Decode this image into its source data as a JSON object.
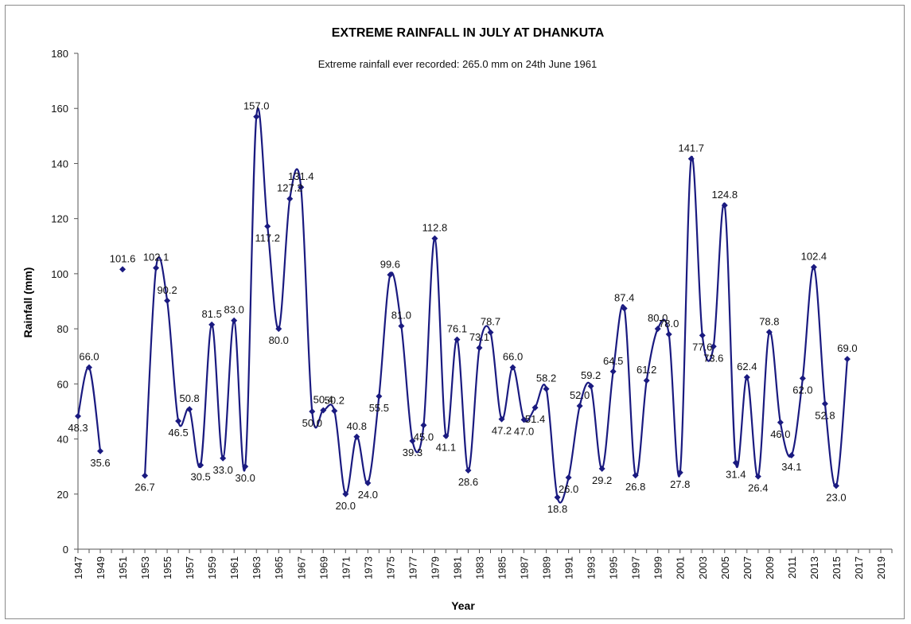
{
  "chart_data": {
    "type": "line",
    "title": "EXTREME RAINFALL IN JULY AT DHANKUTA",
    "annotation": "Extreme rainfall ever recorded: 265.0 mm on 24th June 1961",
    "xlabel": "Year",
    "ylabel": "Rainfall  (mm)",
    "ylim": [
      0,
      180
    ],
    "yticks": [
      0,
      20,
      40,
      60,
      80,
      100,
      120,
      140,
      160,
      180
    ],
    "xlim": [
      1947,
      2020
    ],
    "xticks": [
      1947,
      1949,
      1951,
      1953,
      1955,
      1957,
      1959,
      1961,
      1963,
      1965,
      1967,
      1969,
      1971,
      1973,
      1975,
      1977,
      1979,
      1981,
      1983,
      1985,
      1987,
      1989,
      1991,
      1993,
      1995,
      1997,
      1999,
      2001,
      2003,
      2005,
      2007,
      2009,
      2011,
      2013,
      2015,
      2017,
      2019
    ],
    "grid": false,
    "line_color": "#1a1a80",
    "marker": "diamond",
    "smooth": true,
    "segments": [
      {
        "x": [
          1947,
          1948,
          1949
        ],
        "y": [
          48.3,
          66.0,
          35.6
        ]
      },
      {
        "x": [
          1951
        ],
        "y": [
          101.6
        ]
      },
      {
        "x": [
          1953,
          1954,
          1955,
          1956,
          1957,
          1958,
          1959,
          1960,
          1961,
          1962,
          1963,
          1964,
          1965,
          1966,
          1967,
          1968,
          1969,
          1970,
          1971,
          1972,
          1973,
          1974,
          1975,
          1976,
          1977,
          1978,
          1979,
          1980,
          1981,
          1982,
          1983,
          1984,
          1985,
          1986,
          1987,
          1988,
          1989,
          1990,
          1991,
          1992,
          1993,
          1994,
          1995,
          1996,
          1997,
          1998,
          1999,
          2000,
          2001,
          2002,
          2003,
          2004,
          2005,
          2006,
          2007,
          2008,
          2009,
          2010,
          2011,
          2012,
          2013,
          2014,
          2015,
          2016
        ],
        "y": [
          26.7,
          102.1,
          90.2,
          46.5,
          50.8,
          30.5,
          81.5,
          33.0,
          83.0,
          30.0,
          157.0,
          117.2,
          80.0,
          127.2,
          131.4,
          50.0,
          50.4,
          50.2,
          20.0,
          40.8,
          24.0,
          55.5,
          99.6,
          81.0,
          39.3,
          45.0,
          112.8,
          41.1,
          76.1,
          28.6,
          73.1,
          78.7,
          47.2,
          66.0,
          47.0,
          51.4,
          58.2,
          18.8,
          26.0,
          52.0,
          59.2,
          29.2,
          64.5,
          87.4,
          26.8,
          61.2,
          80.0,
          78.0,
          27.8,
          141.7,
          77.6,
          73.6,
          124.8,
          31.4,
          62.4,
          26.4,
          78.8,
          46.0,
          34.1,
          62.0,
          102.4,
          52.8,
          23.0,
          69.0
        ]
      }
    ],
    "labels": [
      {
        "x": 1947,
        "y": 48.3,
        "text": "48.3"
      },
      {
        "x": 1948,
        "y": 66.0,
        "text": "66.0"
      },
      {
        "x": 1949,
        "y": 35.6,
        "text": "35.6"
      },
      {
        "x": 1951,
        "y": 101.6,
        "text": "101.6"
      },
      {
        "x": 1953,
        "y": 26.7,
        "text": "26.7"
      },
      {
        "x": 1954,
        "y": 102.1,
        "text": "102.1"
      },
      {
        "x": 1955,
        "y": 90.2,
        "text": "90.2"
      },
      {
        "x": 1956,
        "y": 46.5,
        "text": "46.5"
      },
      {
        "x": 1957,
        "y": 50.8,
        "text": "50.8"
      },
      {
        "x": 1958,
        "y": 30.5,
        "text": "30.5"
      },
      {
        "x": 1959,
        "y": 81.5,
        "text": "81.5"
      },
      {
        "x": 1960,
        "y": 33.0,
        "text": "33.0"
      },
      {
        "x": 1961,
        "y": 83.0,
        "text": "83.0"
      },
      {
        "x": 1962,
        "y": 30.0,
        "text": "30.0"
      },
      {
        "x": 1963,
        "y": 157.0,
        "text": "157.0"
      },
      {
        "x": 1964,
        "y": 117.2,
        "text": "117.2"
      },
      {
        "x": 1965,
        "y": 80.0,
        "text": "80.0"
      },
      {
        "x": 1966,
        "y": 127.2,
        "text": "127.2"
      },
      {
        "x": 1967,
        "y": 131.4,
        "text": "131.4"
      },
      {
        "x": 1968,
        "y": 50.0,
        "text": "50.0"
      },
      {
        "x": 1969,
        "y": 50.4,
        "text": "50.4"
      },
      {
        "x": 1970,
        "y": 50.2,
        "text": "50.2"
      },
      {
        "x": 1971,
        "y": 20.0,
        "text": "20.0"
      },
      {
        "x": 1972,
        "y": 40.8,
        "text": "40.8"
      },
      {
        "x": 1973,
        "y": 24.0,
        "text": "24.0"
      },
      {
        "x": 1974,
        "y": 55.5,
        "text": "55.5"
      },
      {
        "x": 1975,
        "y": 99.6,
        "text": "99.6"
      },
      {
        "x": 1976,
        "y": 81.0,
        "text": "81.0"
      },
      {
        "x": 1977,
        "y": 39.3,
        "text": "39.3"
      },
      {
        "x": 1978,
        "y": 45.0,
        "text": "45.0"
      },
      {
        "x": 1979,
        "y": 112.8,
        "text": "112.8"
      },
      {
        "x": 1980,
        "y": 41.1,
        "text": "41.1"
      },
      {
        "x": 1981,
        "y": 76.1,
        "text": "76.1"
      },
      {
        "x": 1982,
        "y": 28.6,
        "text": "28.6"
      },
      {
        "x": 1983,
        "y": 73.1,
        "text": "73.1"
      },
      {
        "x": 1984,
        "y": 78.7,
        "text": "78.7"
      },
      {
        "x": 1985,
        "y": 47.2,
        "text": "47.2"
      },
      {
        "x": 1986,
        "y": 66.0,
        "text": "66.0"
      },
      {
        "x": 1987,
        "y": 47.0,
        "text": "47.0"
      },
      {
        "x": 1988,
        "y": 51.4,
        "text": "51.4"
      },
      {
        "x": 1989,
        "y": 58.2,
        "text": "58.2"
      },
      {
        "x": 1990,
        "y": 18.8,
        "text": "18.8"
      },
      {
        "x": 1991,
        "y": 26.0,
        "text": "26.0"
      },
      {
        "x": 1992,
        "y": 52.0,
        "text": "52.0"
      },
      {
        "x": 1993,
        "y": 59.2,
        "text": "59.2"
      },
      {
        "x": 1994,
        "y": 29.2,
        "text": "29.2"
      },
      {
        "x": 1995,
        "y": 64.5,
        "text": "64.5"
      },
      {
        "x": 1996,
        "y": 87.4,
        "text": "87.4"
      },
      {
        "x": 1997,
        "y": 26.8,
        "text": "26.8"
      },
      {
        "x": 1998,
        "y": 61.2,
        "text": "61.2"
      },
      {
        "x": 1999,
        "y": 80.0,
        "text": "80.0"
      },
      {
        "x": 2000,
        "y": 78.0,
        "text": "78.0"
      },
      {
        "x": 2001,
        "y": 27.8,
        "text": "27.8"
      },
      {
        "x": 2002,
        "y": 141.7,
        "text": "141.7"
      },
      {
        "x": 2003,
        "y": 77.6,
        "text": "77.6"
      },
      {
        "x": 2004,
        "y": 73.6,
        "text": "73.6"
      },
      {
        "x": 2005,
        "y": 124.8,
        "text": "124.8"
      },
      {
        "x": 2006,
        "y": 31.4,
        "text": "31.4"
      },
      {
        "x": 2007,
        "y": 62.4,
        "text": "62.4"
      },
      {
        "x": 2008,
        "y": 26.4,
        "text": "26.4"
      },
      {
        "x": 2009,
        "y": 78.8,
        "text": "78.8"
      },
      {
        "x": 2010,
        "y": 46.0,
        "text": "46.0"
      },
      {
        "x": 2011,
        "y": 34.1,
        "text": "34.1"
      },
      {
        "x": 2012,
        "y": 62.0,
        "text": "62.0"
      },
      {
        "x": 2013,
        "y": 102.4,
        "text": "102.4"
      },
      {
        "x": 2014,
        "y": 52.8,
        "text": "52.8"
      },
      {
        "x": 2015,
        "y": 23.0,
        "text": "23.0"
      },
      {
        "x": 2016,
        "y": 69.0,
        "text": "69.0"
      }
    ]
  }
}
